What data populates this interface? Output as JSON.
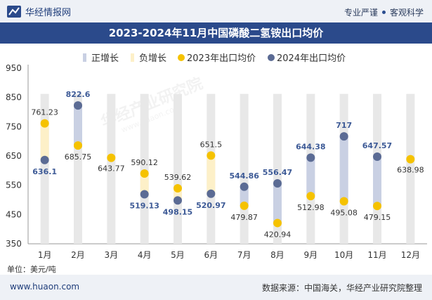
{
  "header": {
    "brand": "华经情报网",
    "tagline_left": "专业严谨",
    "tagline_right": "客观科学"
  },
  "chart_data": {
    "type": "bar",
    "title": "2023-2024年11月中国磷酸二氢铵出口均价",
    "categories": [
      "1月",
      "2月",
      "3月",
      "4月",
      "5月",
      "6月",
      "7月",
      "8月",
      "9月",
      "10月",
      "11月",
      "12月"
    ],
    "series": [
      {
        "name": "2023年出口均价",
        "values": [
          761.23,
          685.75,
          643.77,
          590.12,
          539.62,
          651.5,
          479.87,
          420.94,
          512.98,
          495.08,
          479.15,
          638.98
        ]
      },
      {
        "name": "2024年出口均价",
        "values": [
          636.1,
          822.6,
          null,
          519.13,
          498.15,
          520.97,
          544.86,
          556.47,
          644.38,
          717,
          647.57,
          null
        ]
      }
    ],
    "value_labels_2023": [
      "761.23",
      "685.75",
      "643.77",
      "590.12",
      "539.62",
      "651.5",
      "479.87",
      "420.94",
      "512.98",
      "495.08",
      "479.15",
      "638.98"
    ],
    "value_labels_2024": [
      "636.1",
      "822.6",
      "",
      "519.13",
      "498.15",
      "520.97",
      "544.86",
      "556.47",
      "644.38",
      "717",
      "647.57",
      ""
    ],
    "legend": [
      "正增长",
      "负增长",
      "2023年出口均价",
      "2024年出口均价"
    ],
    "ylim": [
      350,
      950
    ],
    "yticks": [
      950,
      850,
      750,
      650,
      550,
      450,
      350
    ],
    "ytick_labels": [
      "950",
      "850",
      "750",
      "650",
      "550",
      "450",
      "350"
    ],
    "unit_label": "单位：美元/吨",
    "watermark": "华经产业研究院",
    "watermark_url": "www.huaon.com",
    "colors": {
      "bg_bar": "#e8e8e8",
      "positive": "#c9d0e3",
      "negative": "#fdf0c8",
      "dot2023": "#f5c200",
      "dot2024": "#5b6b94",
      "label2023": "#333333",
      "label2024": "#3d5a96"
    }
  },
  "footer": {
    "website": "www.huaon.com",
    "source": "数据来源：中国海关，华经产业研究院整理"
  }
}
